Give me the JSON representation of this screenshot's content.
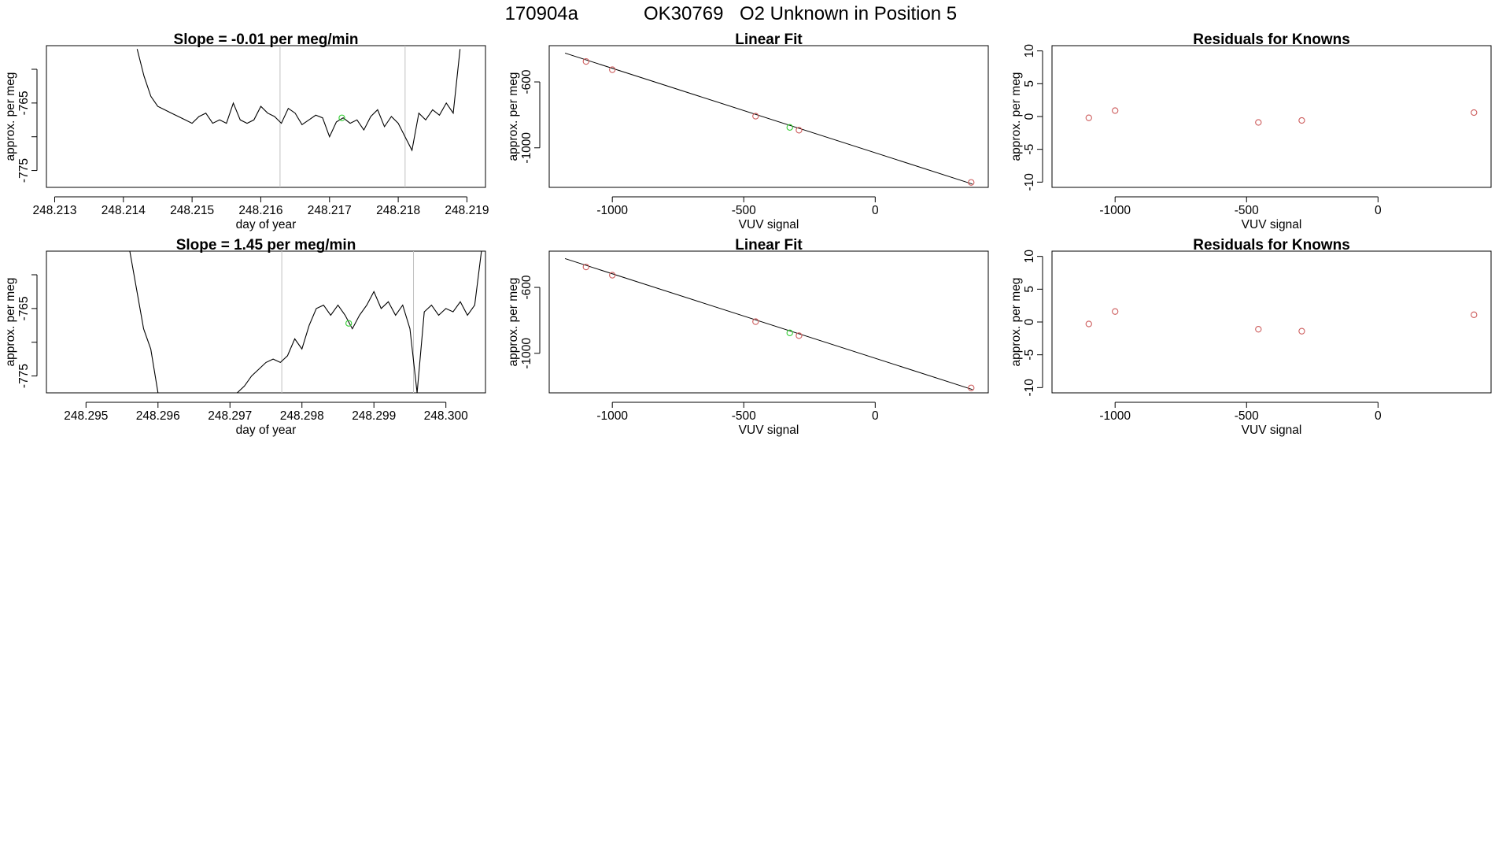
{
  "figure": {
    "title_run": "170904a",
    "title_tank": "OK30769",
    "title_desc": "O2 Unknown in Position  5"
  },
  "colors": {
    "line": "#000000",
    "known": "#cd5c5c",
    "unknown": "#32cd32",
    "vline": "#c0c0c0",
    "frame": "#000000"
  },
  "chart_data": [
    {
      "type": "line",
      "title": "Slope =  -0.01  per meg/min",
      "xlabel": "day of year",
      "ylabel": "approx. per meg",
      "xlim": [
        248.21288,
        248.21927
      ],
      "ylim": [
        -777.5,
        -756.5
      ],
      "xticks": [
        248.213,
        248.214,
        248.215,
        248.216,
        248.217,
        248.218,
        248.219
      ],
      "xticklabels": [
        "248.213",
        "248.214",
        "248.215",
        "248.216",
        "248.217",
        "248.218",
        "248.219"
      ],
      "yticks": [
        -760,
        -765,
        -770,
        -775
      ],
      "yticklabels": [
        "",
        "-765",
        "",
        "-775"
      ],
      "vlines": [
        248.21628,
        248.2181
      ],
      "x": [
        248.2142,
        248.2143,
        248.2144,
        248.2145,
        248.2146,
        248.2147,
        248.2148,
        248.2149,
        248.215,
        248.2151,
        248.2152,
        248.2153,
        248.2154,
        248.2155,
        248.2156,
        248.2157,
        248.2158,
        248.2159,
        248.216,
        248.2161,
        248.2162,
        248.2163,
        248.2164,
        248.2165,
        248.2166,
        248.2167,
        248.2168,
        248.2169,
        248.217,
        248.2171,
        248.2172,
        248.2173,
        248.2174,
        248.2175,
        248.2176,
        248.2177,
        248.2178,
        248.2179,
        248.218,
        248.2181,
        248.2182,
        248.2183,
        248.2184,
        248.2185,
        248.2186,
        248.2187,
        248.2188,
        248.2189
      ],
      "y": [
        -757,
        -761,
        -764,
        -765.5,
        -766,
        -766.5,
        -767,
        -767.5,
        -768,
        -767,
        -766.5,
        -768,
        -767.5,
        -768,
        -765,
        -767.5,
        -768,
        -767.5,
        -765.5,
        -766.5,
        -767,
        -768,
        -765.8,
        -766.5,
        -768.2,
        -767.5,
        -766.8,
        -767.2,
        -770,
        -767.8,
        -767.2,
        -768,
        -767.5,
        -769,
        -767,
        -766,
        -768.5,
        -767,
        -768,
        -770,
        -772,
        -766.5,
        -767.5,
        -766,
        -766.8,
        -765,
        -766.5,
        -757
      ],
      "unknown_point": {
        "x": 248.21718,
        "y": -767.2
      }
    },
    {
      "type": "scatter",
      "title": "Linear Fit",
      "xlabel": "VUV signal",
      "ylabel": "approx. per meg",
      "xlim": [
        -1240,
        430
      ],
      "ylim": [
        -1240,
        -380
      ],
      "xticks": [
        -1000,
        -500,
        0
      ],
      "xticklabels": [
        "-1000",
        "-500",
        "0"
      ],
      "yticks": [
        -600,
        -1000
      ],
      "yticklabels": [
        "-600",
        "-1000"
      ],
      "fit_line": {
        "x": [
          -1180,
          370
        ],
        "y": [
          -425,
          -1220
        ]
      },
      "known_points": {
        "x": [
          -1100,
          -1000,
          -455,
          -290,
          365
        ],
        "y": [
          -476,
          -526,
          -808,
          -893,
          -1210
        ]
      },
      "unknown_point": {
        "x": -325,
        "y": -876
      }
    },
    {
      "type": "scatter",
      "title": "Residuals for Knowns",
      "xlabel": "VUV signal",
      "ylabel": "approx. per meg",
      "xlim": [
        -1240,
        430
      ],
      "ylim": [
        -10.8,
        10.8
      ],
      "xticks": [
        -1000,
        -500,
        0
      ],
      "xticklabels": [
        "-1000",
        "-500",
        "0"
      ],
      "yticks": [
        10,
        5,
        0,
        -5,
        -10
      ],
      "yticklabels": [
        "10",
        "5",
        "0",
        "-5",
        "-10"
      ],
      "known_points": {
        "x": [
          -1100,
          -1000,
          -455,
          -290,
          365
        ],
        "y": [
          -0.2,
          0.9,
          -0.9,
          -0.6,
          0.6
        ]
      }
    },
    {
      "type": "line",
      "title": "Slope =  1.45  per meg/min",
      "xlabel": "day of year",
      "ylabel": "approx. per meg",
      "xlim": [
        248.29445,
        248.30055
      ],
      "ylim": [
        -777.5,
        -756.5
      ],
      "xticks": [
        248.295,
        248.296,
        248.297,
        248.298,
        248.299,
        248.3
      ],
      "xticklabels": [
        "248.295",
        "248.296",
        "248.297",
        "248.298",
        "248.299",
        "248.300"
      ],
      "yticks": [
        -760,
        -765,
        -770,
        -775
      ],
      "yticklabels": [
        "",
        "-765",
        "",
        "-775"
      ],
      "vlines": [
        248.29772,
        248.29955
      ],
      "x": [
        248.2956,
        248.2958,
        248.2959,
        248.296,
        248.2971,
        248.2972,
        248.2973,
        248.2974,
        248.2975,
        248.2976,
        248.2977,
        248.2978,
        248.2979,
        248.298,
        248.2981,
        248.2982,
        248.2983,
        248.2984,
        248.2985,
        248.2986,
        248.2987,
        248.2988,
        248.2989,
        248.299,
        248.2991,
        248.2992,
        248.2993,
        248.2994,
        248.2995,
        248.2996,
        248.2997,
        248.2998,
        248.2999,
        248.3,
        248.3001,
        248.3002,
        248.3003,
        248.3004,
        248.3005
      ],
      "y": [
        -756,
        -768,
        -771,
        -777.5,
        -777.5,
        -776.5,
        -775,
        -774,
        -773,
        -772.5,
        -773,
        -772,
        -769.5,
        -771,
        -767.5,
        -765,
        -764.5,
        -766,
        -764.5,
        -766,
        -768,
        -766,
        -764.5,
        -762.5,
        -765,
        -764,
        -766,
        -764.5,
        -768,
        -777.5,
        -765.5,
        -764.5,
        -766,
        -765,
        -765.5,
        -764,
        -766,
        -764.5,
        -756
      ],
      "unknown_point": {
        "x": 248.29865,
        "y": -767.2
      }
    },
    {
      "type": "scatter",
      "title": "Linear Fit",
      "xlabel": "VUV signal",
      "ylabel": "approx. per meg",
      "xlim": [
        -1240,
        430
      ],
      "ylim": [
        -1240,
        -380
      ],
      "xticks": [
        -1000,
        -500,
        0
      ],
      "xticklabels": [
        "-1000",
        "-500",
        "0"
      ],
      "yticks": [
        -600,
        -1000
      ],
      "yticklabels": [
        "-600",
        "-1000"
      ],
      "fit_line": {
        "x": [
          -1180,
          370
        ],
        "y": [
          -425,
          -1220
        ]
      },
      "known_points": {
        "x": [
          -1100,
          -1000,
          -455,
          -290,
          365
        ],
        "y": [
          -476,
          -526,
          -808,
          -893,
          -1210
        ]
      },
      "unknown_point": {
        "x": -325,
        "y": -876
      }
    },
    {
      "type": "scatter",
      "title": "Residuals for Knowns",
      "xlabel": "VUV signal",
      "ylabel": "approx. per meg",
      "xlim": [
        -1240,
        430
      ],
      "ylim": [
        -10.8,
        10.8
      ],
      "xticks": [
        -1000,
        -500,
        0
      ],
      "xticklabels": [
        "-1000",
        "-500",
        "0"
      ],
      "yticks": [
        10,
        5,
        0,
        -5,
        -10
      ],
      "yticklabels": [
        "10",
        "5",
        "0",
        "-5",
        "-10"
      ],
      "known_points": {
        "x": [
          -1100,
          -1000,
          -455,
          -290,
          365
        ],
        "y": [
          -0.3,
          1.6,
          -1.1,
          -1.4,
          1.1
        ]
      }
    }
  ]
}
